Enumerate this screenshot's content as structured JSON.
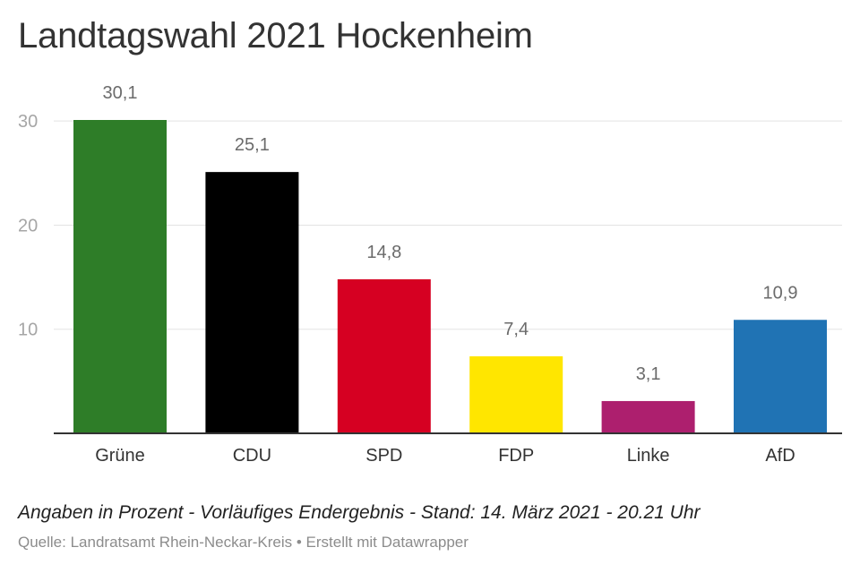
{
  "header": {
    "title": "Landtagswahl 2021 Hockenheim"
  },
  "chart_data": {
    "type": "bar",
    "title": "Landtagswahl 2021 Hockenheim",
    "categories": [
      "Grüne",
      "CDU",
      "SPD",
      "FDP",
      "Linke",
      "AfD"
    ],
    "values": [
      30.1,
      25.1,
      14.8,
      7.4,
      3.1,
      10.9
    ],
    "value_labels": [
      "30,1",
      "25,1",
      "14,8",
      "7,4",
      "3,1",
      "10,9"
    ],
    "colors": [
      "#2e7d28",
      "#000000",
      "#d60022",
      "#ffe600",
      "#ad1f6e",
      "#2073b4"
    ],
    "yticks": [
      10,
      20,
      30
    ],
    "ylim": [
      0,
      30.1
    ],
    "xlabel": "",
    "ylabel": "",
    "grid": true,
    "legend": "none"
  },
  "footer": {
    "note": "Angaben in Prozent - Vorläufiges Endergebnis - Stand: 14. März 2021 - 20.21 Uhr",
    "source": "Quelle: Landratsamt Rhein-Neckar-Kreis • Erstellt mit Datawrapper"
  }
}
